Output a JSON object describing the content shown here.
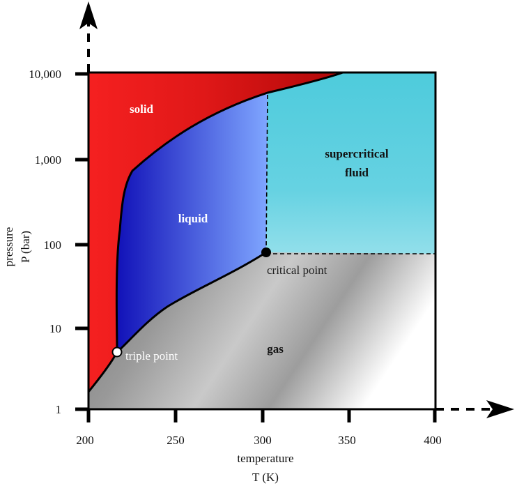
{
  "diagram": {
    "x_axis": {
      "ticks": [
        "200",
        "250",
        "300",
        "350",
        "400"
      ],
      "title_line1": "temperature",
      "title_line2": "T (K)"
    },
    "y_axis": {
      "ticks": [
        "1",
        "10",
        "100",
        "1,000",
        "10,000"
      ],
      "title_line1": "pressure",
      "title_line2": "P (bar)"
    },
    "regions": {
      "solid": "solid",
      "liquid": "liquid",
      "supercritical_line1": "supercritical",
      "supercritical_line2": "fluid",
      "gas": "gas"
    },
    "points": {
      "triple": "triple point",
      "critical": "critical point"
    },
    "colors": {
      "solid": "#ee1c1c",
      "liquid": "#2222cc",
      "supercritical": "#4ecbdc",
      "gas": "#9a9a9a"
    }
  }
}
